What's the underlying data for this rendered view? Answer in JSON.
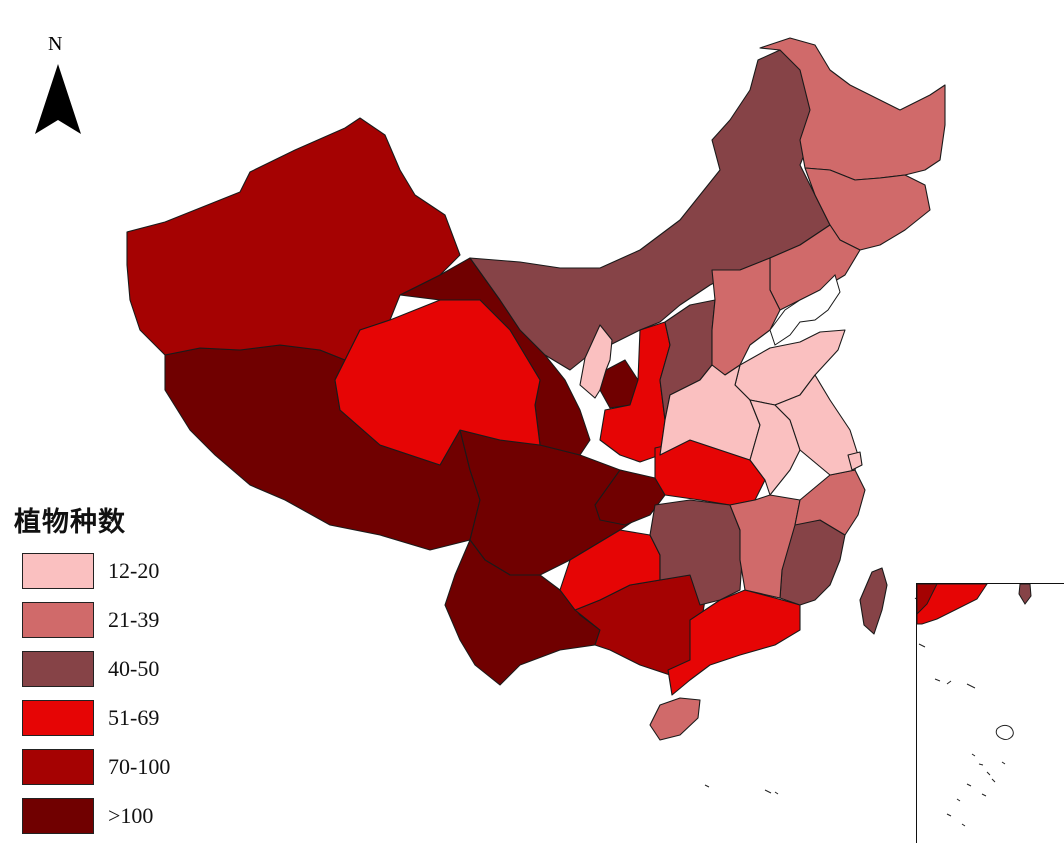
{
  "north": {
    "letter": "N",
    "icon": "north-arrow-icon"
  },
  "legend": {
    "title": "植物种数",
    "classes": [
      {
        "label": "12-20",
        "color": "#FAC0C0"
      },
      {
        "label": "21-39",
        "color": "#D06A6A"
      },
      {
        "label": "40-50",
        "color": "#864347"
      },
      {
        "label": "51-69",
        "color": "#E60505"
      },
      {
        "label": "70-100",
        "color": "#A50202"
      },
      {
        "label": ">100",
        "color": "#700000"
      }
    ]
  }
}
